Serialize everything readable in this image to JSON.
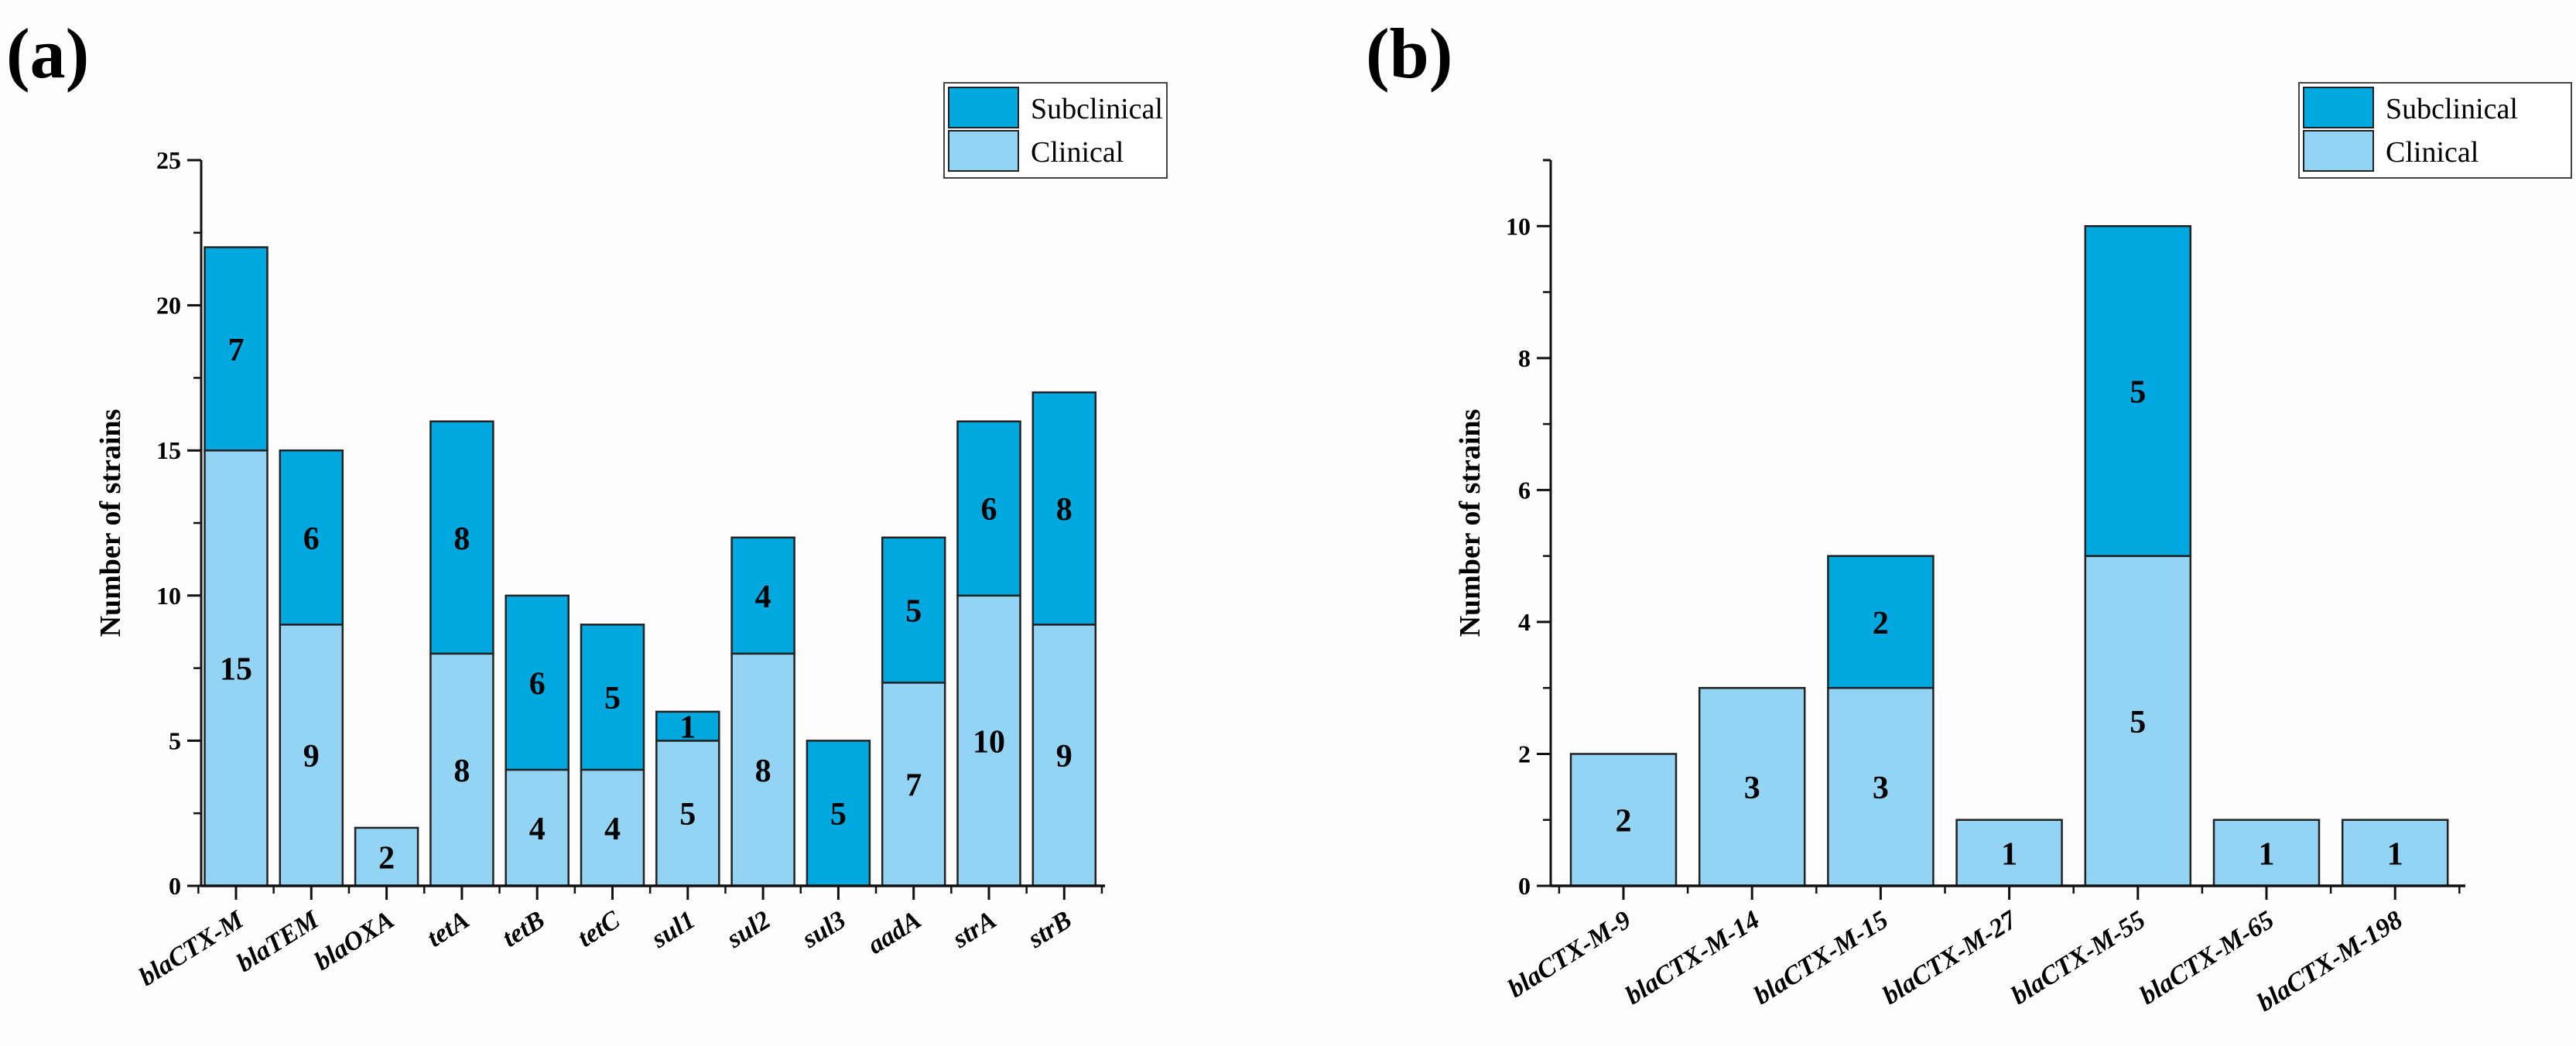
{
  "colors": {
    "clinical": "#93d3f3",
    "subclinical": "#00a8e0"
  },
  "chart_data": [
    {
      "type": "bar",
      "stacked": true,
      "panel_label": "(a)",
      "title": "",
      "xlabel": "",
      "ylabel": "Number of strains",
      "ylim": [
        0,
        25
      ],
      "yticks": [
        0,
        5,
        10,
        15,
        20,
        25
      ],
      "legend": {
        "placement": "top-right",
        "entries": [
          "Subclinical",
          "Clinical"
        ]
      },
      "categories": [
        "blaCTX-M",
        "blaTEM",
        "blaOXA",
        "tetA",
        "tetB",
        "tetC",
        "sul1",
        "sul2",
        "sul3",
        "aadA",
        "strA",
        "strB"
      ],
      "series": [
        {
          "name": "Clinical",
          "values": [
            15,
            9,
            2,
            8,
            4,
            4,
            5,
            8,
            0,
            7,
            10,
            9
          ]
        },
        {
          "name": "Subclinical",
          "values": [
            7,
            6,
            0,
            8,
            6,
            5,
            1,
            4,
            5,
            5,
            6,
            8
          ]
        }
      ]
    },
    {
      "type": "bar",
      "stacked": true,
      "panel_label": "(b)",
      "title": "",
      "xlabel": "",
      "ylabel": "Number of strains",
      "ylim": [
        0,
        11
      ],
      "yticks": [
        0,
        2,
        4,
        6,
        8,
        10
      ],
      "legend": {
        "placement": "top-right",
        "entries": [
          "Subclinical",
          "Clinical"
        ]
      },
      "categories": [
        "blaCTX-M-9",
        "blaCTX-M-14",
        "blaCTX-M-15",
        "blaCTX-M-27",
        "blaCTX-M-55",
        "blaCTX-M-65",
        "blaCTX-M-198"
      ],
      "series": [
        {
          "name": "Clinical",
          "values": [
            2,
            3,
            3,
            1,
            5,
            1,
            1
          ]
        },
        {
          "name": "Subclinical",
          "values": [
            0,
            0,
            2,
            0,
            5,
            0,
            0
          ]
        }
      ]
    }
  ]
}
